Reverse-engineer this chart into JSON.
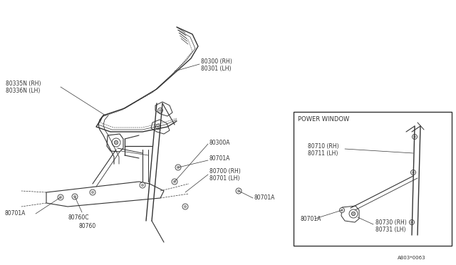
{
  "bg_color": "#ffffff",
  "line_color": "#333333",
  "fig_width": 6.4,
  "fig_height": 3.72,
  "dpi": 100,
  "title_code": "A803*0063",
  "fs": 5.5,
  "labels": {
    "l1a": "80335N (RH)",
    "l1b": "80336N (LH)",
    "l2a": "80300 (RH)",
    "l2b": "80301 (LH)",
    "l3": "80300A",
    "l4": "80701A",
    "l5a": "80700 (RH)",
    "l5b": "80701 (LH)",
    "l6": "80701A",
    "l7": "80701A",
    "l8": "80760C",
    "l9": "80760",
    "pw": "POWER WINDOW",
    "l10a": "80710 (RH)",
    "l10b": "80711 (LH)",
    "l11": "80701A",
    "l12a": "80730 (RH)",
    "l12b": "80731 (LH)",
    "code": "A803*0063"
  }
}
